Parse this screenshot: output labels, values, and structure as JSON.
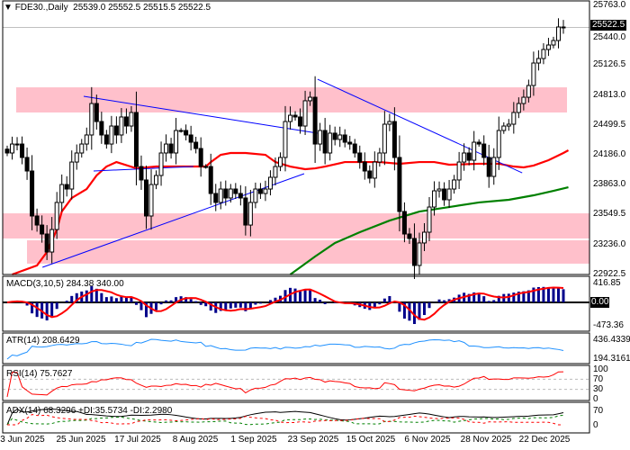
{
  "header": {
    "arrow_icon": "triangle-down",
    "symbol": "FDE30.,Daily",
    "ohlc": "25539.0 25552.5 25515.5 25522.5"
  },
  "price_axis": [
    "25763.0",
    "25440.0",
    "25126.5",
    "24813.0",
    "24499.5",
    "24186.0",
    "23863.0",
    "23549.5",
    "23236.0",
    "22922.5"
  ],
  "current_price": "25522.5",
  "indicators": {
    "macd": {
      "label": "MACD(3,10,5) 284.38 340.00",
      "axis": [
        "416.85",
        "0.00",
        "-473.36"
      ]
    },
    "atr": {
      "label": "ATR(14) 208.6429",
      "axis": [
        "436.4339",
        "194.3161"
      ]
    },
    "rsi": {
      "label": "RSI(14) 75.7627",
      "axis": [
        "100",
        "70",
        "30",
        "0"
      ]
    },
    "adx": {
      "label": "ADX(14) 68.3296 +DI:35.5734 -DI:2.2980",
      "axis": [
        "70",
        "0"
      ]
    }
  },
  "x_axis": [
    "3 Jun 2025",
    "25 Jun 2025",
    "17 Jul 2025",
    "8 Aug 2025",
    "1 Sep 2025",
    "23 Sep 2025",
    "15 Oct 2025",
    "6 Nov 2025",
    "28 Nov 2025",
    "22 Dec 2025"
  ],
  "colors": {
    "up": "#ffffff",
    "down": "#000000",
    "ma_fast": "#ff0000",
    "ma_slow": "#008000",
    "trendline": "#0000ff",
    "zone": "#ffc0cb",
    "macd_hist": "#00008b",
    "atr": "#1e90ff",
    "rsi": "#ff0000"
  },
  "chart_data": {
    "type": "candlestick",
    "title": "FDE30., Daily",
    "ylim": [
      22922.5,
      25763.0
    ],
    "closes": [
      24205,
      24299,
      24299,
      24158,
      24016,
      23544,
      23449,
      23355,
      23166,
      23402,
      23686,
      23874,
      23827,
      24110,
      24205,
      24299,
      24394,
      24724,
      24535,
      24394,
      24299,
      24488,
      24394,
      24583,
      24488,
      24630,
      24063,
      23922,
      23544,
      23874,
      23969,
      24205,
      24299,
      24205,
      24441,
      24441,
      24394,
      24318,
      24252,
      24063,
      24063,
      23780,
      23686,
      23827,
      23733,
      23827,
      23780,
      23733,
      23449,
      23686,
      23827,
      23780,
      23827,
      23950,
      24063,
      24158,
      24535,
      24601,
      24583,
      24488,
      24753,
      24790,
      24299,
      24441,
      24205,
      24413,
      24347,
      24394,
      24318,
      24299,
      24205,
      24110,
      24016,
      23941,
      24110,
      24205,
      24507,
      24535,
      24158,
      23591,
      23355,
      23308,
      23025,
      23261,
      23374,
      23638,
      23808,
      23827,
      23714,
      23827,
      23922,
      24110,
      24205,
      24129,
      24318,
      24299,
      24158,
      23959,
      24158,
      24441,
      24488,
      24507,
      24630,
      24724,
      24790,
      24913,
      25149,
      25196,
      25291,
      25338,
      25385,
      25527,
      25522.5
    ],
    "ma_fast": [
      [
        1,
        22930
      ],
      [
        6,
        23025
      ],
      [
        8,
        23166
      ],
      [
        10,
        23402
      ],
      [
        11,
        23591
      ],
      [
        13,
        23733
      ],
      [
        16,
        23827
      ],
      [
        18,
        23969
      ],
      [
        20,
        24063
      ],
      [
        22,
        24110
      ],
      [
        26,
        24044
      ],
      [
        30,
        24063
      ],
      [
        40,
        24063
      ],
      [
        41,
        24110
      ],
      [
        43,
        24186
      ],
      [
        45,
        24205
      ],
      [
        48,
        24205
      ],
      [
        52,
        24186
      ],
      [
        54,
        24110
      ],
      [
        57,
        24063
      ],
      [
        60,
        24035
      ],
      [
        62,
        24044
      ],
      [
        64,
        24063
      ],
      [
        68,
        24110
      ],
      [
        75,
        24110
      ],
      [
        79,
        24092
      ],
      [
        83,
        24110
      ],
      [
        86,
        24110
      ],
      [
        89,
        24082
      ],
      [
        95,
        24092
      ],
      [
        99,
        24092
      ],
      [
        102,
        24063
      ],
      [
        104,
        24054
      ],
      [
        106,
        24073
      ],
      [
        109,
        24129
      ],
      [
        112,
        24205
      ],
      [
        113,
        24233
      ]
    ],
    "ma_slow": [
      [
        57,
        22930
      ],
      [
        62,
        23119
      ],
      [
        66,
        23261
      ],
      [
        71,
        23374
      ],
      [
        77,
        23496
      ],
      [
        83,
        23591
      ],
      [
        89,
        23638
      ],
      [
        95,
        23686
      ],
      [
        101,
        23714
      ],
      [
        106,
        23761
      ],
      [
        110,
        23808
      ],
      [
        113,
        23846
      ]
    ],
    "trendlines": [
      [
        [
          15.4,
          24800
        ],
        [
          62.5,
          24413
        ]
      ],
      [
        [
          7.1,
          23006
        ],
        [
          59.8,
          23988
        ]
      ],
      [
        [
          17.4,
          24016
        ],
        [
          37.5,
          24063
        ]
      ],
      [
        [
          62.5,
          24979
        ],
        [
          103.7,
          23997
        ]
      ]
    ],
    "zones": [
      [
        24630,
        24894
      ],
      [
        23308,
        23572
      ],
      [
        23044,
        23289
      ]
    ]
  }
}
